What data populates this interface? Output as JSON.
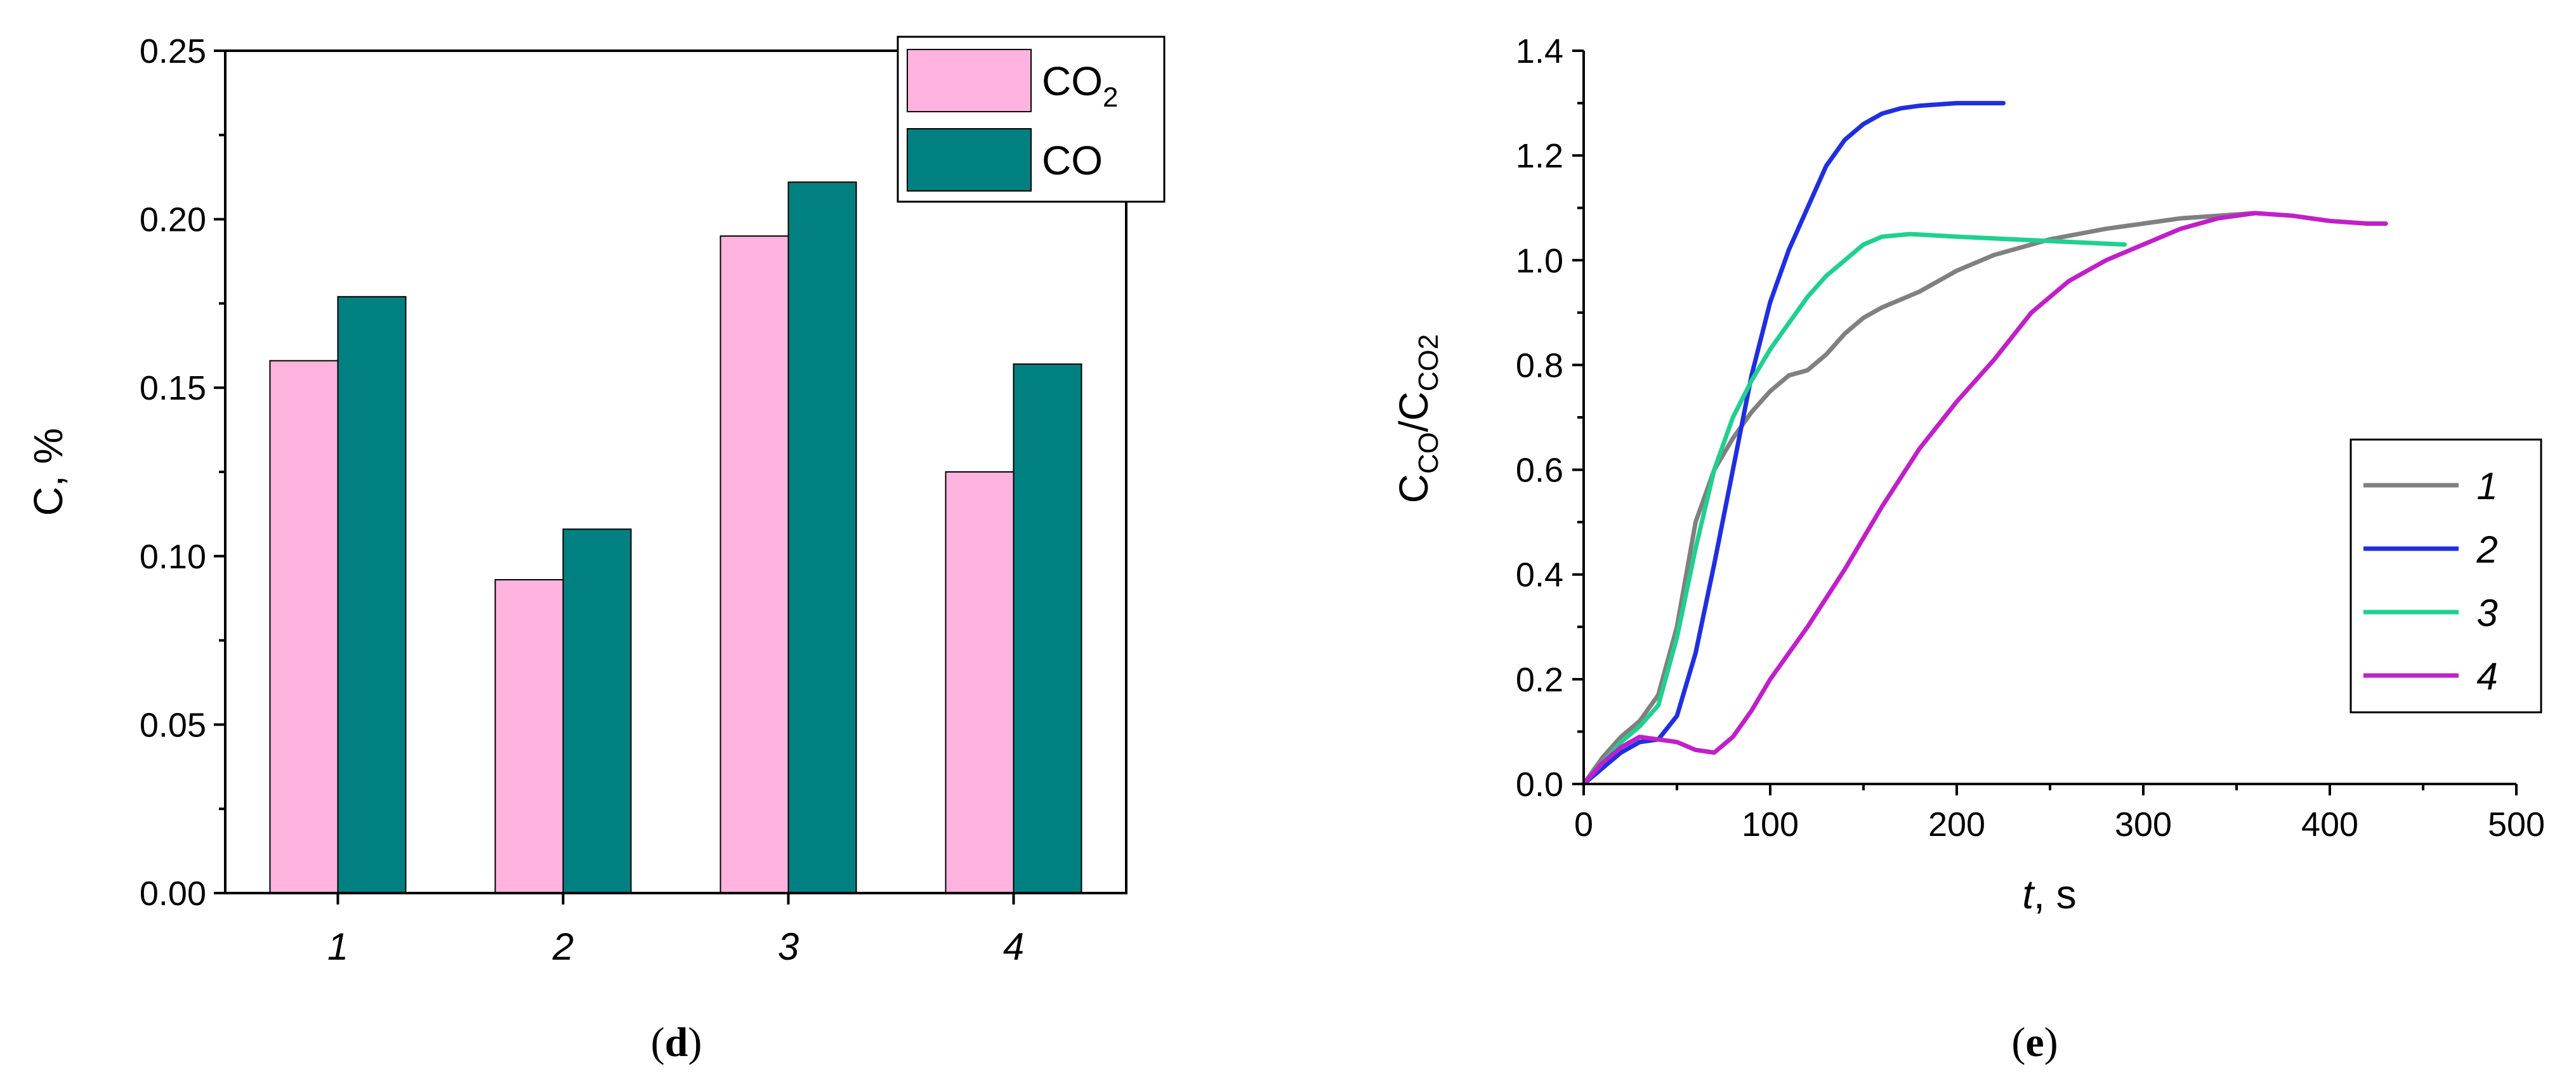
{
  "chart_data": [
    {
      "panel": "d",
      "type": "bar",
      "categories": [
        "1",
        "2",
        "3",
        "4"
      ],
      "series": [
        {
          "name": "CO2",
          "label_main": "CO",
          "label_sub": "2",
          "color": "#ffb3de",
          "values": [
            0.158,
            0.093,
            0.195,
            0.125
          ]
        },
        {
          "name": "CO",
          "label_main": "CO",
          "label_sub": "",
          "color": "#008080",
          "values": [
            0.177,
            0.108,
            0.211,
            0.157
          ]
        }
      ],
      "ylabel": "C, %",
      "xlabel": "",
      "ylim": [
        0,
        0.25
      ],
      "yticks": [
        0.0,
        0.05,
        0.1,
        0.15,
        0.2,
        0.25
      ],
      "ytick_labels": [
        "0.00",
        "0.05",
        "0.10",
        "0.15",
        "0.20",
        "0.25"
      ],
      "legend_position": "top-right",
      "caption_open": "(",
      "caption_letter": "d",
      "caption_close": ")"
    },
    {
      "panel": "e",
      "type": "line",
      "ylabel_main": "C",
      "ylabel_sub1": "CO",
      "ylabel_mid": "/C",
      "ylabel_sub2": "CO2",
      "xlabel_var": "t",
      "xlabel_unit": ", s",
      "xlim": [
        0,
        500
      ],
      "ylim": [
        0,
        1.4
      ],
      "xticks": [
        0,
        100,
        200,
        300,
        400,
        500
      ],
      "xtick_labels": [
        "0",
        "100",
        "200",
        "300",
        "400",
        "500"
      ],
      "yticks": [
        0.0,
        0.2,
        0.4,
        0.6,
        0.8,
        1.0,
        1.2,
        1.4
      ],
      "ytick_labels": [
        "0.0",
        "0.2",
        "0.4",
        "0.6",
        "0.8",
        "1.0",
        "1.2",
        "1.4"
      ],
      "legend_position": "right",
      "series": [
        {
          "name": "1",
          "color": "#808080",
          "points": [
            [
              0,
              0
            ],
            [
              10,
              0.05
            ],
            [
              20,
              0.09
            ],
            [
              30,
              0.12
            ],
            [
              40,
              0.17
            ],
            [
              50,
              0.3
            ],
            [
              60,
              0.5
            ],
            [
              70,
              0.6
            ],
            [
              80,
              0.66
            ],
            [
              90,
              0.71
            ],
            [
              100,
              0.75
            ],
            [
              110,
              0.78
            ],
            [
              120,
              0.79
            ],
            [
              130,
              0.82
            ],
            [
              140,
              0.86
            ],
            [
              150,
              0.89
            ],
            [
              160,
              0.91
            ],
            [
              180,
              0.94
            ],
            [
              200,
              0.98
            ],
            [
              220,
              1.01
            ],
            [
              250,
              1.04
            ],
            [
              280,
              1.06
            ],
            [
              300,
              1.07
            ],
            [
              320,
              1.08
            ],
            [
              340,
              1.085
            ],
            [
              360,
              1.09
            ]
          ]
        },
        {
          "name": "2",
          "color": "#1f2fe0",
          "points": [
            [
              0,
              0
            ],
            [
              10,
              0.03
            ],
            [
              20,
              0.06
            ],
            [
              30,
              0.08
            ],
            [
              40,
              0.085
            ],
            [
              50,
              0.13
            ],
            [
              60,
              0.25
            ],
            [
              70,
              0.42
            ],
            [
              80,
              0.6
            ],
            [
              90,
              0.78
            ],
            [
              100,
              0.92
            ],
            [
              110,
              1.02
            ],
            [
              120,
              1.1
            ],
            [
              130,
              1.18
            ],
            [
              140,
              1.23
            ],
            [
              150,
              1.26
            ],
            [
              160,
              1.28
            ],
            [
              170,
              1.29
            ],
            [
              180,
              1.295
            ],
            [
              200,
              1.3
            ],
            [
              225,
              1.3
            ]
          ]
        },
        {
          "name": "3",
          "color": "#20d090",
          "points": [
            [
              0,
              0
            ],
            [
              10,
              0.04
            ],
            [
              20,
              0.08
            ],
            [
              30,
              0.11
            ],
            [
              40,
              0.15
            ],
            [
              50,
              0.28
            ],
            [
              60,
              0.45
            ],
            [
              70,
              0.6
            ],
            [
              80,
              0.7
            ],
            [
              90,
              0.77
            ],
            [
              100,
              0.83
            ],
            [
              110,
              0.88
            ],
            [
              120,
              0.93
            ],
            [
              130,
              0.97
            ],
            [
              140,
              1.0
            ],
            [
              150,
              1.03
            ],
            [
              160,
              1.045
            ],
            [
              175,
              1.05
            ],
            [
              200,
              1.045
            ],
            [
              230,
              1.04
            ],
            [
              260,
              1.035
            ],
            [
              290,
              1.03
            ]
          ]
        },
        {
          "name": "4",
          "color": "#c020c8",
          "points": [
            [
              0,
              0
            ],
            [
              10,
              0.04
            ],
            [
              20,
              0.07
            ],
            [
              30,
              0.09
            ],
            [
              40,
              0.085
            ],
            [
              50,
              0.08
            ],
            [
              60,
              0.065
            ],
            [
              70,
              0.06
            ],
            [
              80,
              0.09
            ],
            [
              90,
              0.14
            ],
            [
              100,
              0.2
            ],
            [
              120,
              0.3
            ],
            [
              140,
              0.41
            ],
            [
              160,
              0.53
            ],
            [
              180,
              0.64
            ],
            [
              200,
              0.73
            ],
            [
              220,
              0.81
            ],
            [
              240,
              0.9
            ],
            [
              260,
              0.96
            ],
            [
              280,
              1.0
            ],
            [
              300,
              1.03
            ],
            [
              320,
              1.06
            ],
            [
              340,
              1.08
            ],
            [
              360,
              1.09
            ],
            [
              380,
              1.085
            ],
            [
              400,
              1.075
            ],
            [
              420,
              1.07
            ],
            [
              430,
              1.07
            ]
          ]
        }
      ],
      "caption_open": "(",
      "caption_letter": "e",
      "caption_close": ")"
    }
  ]
}
